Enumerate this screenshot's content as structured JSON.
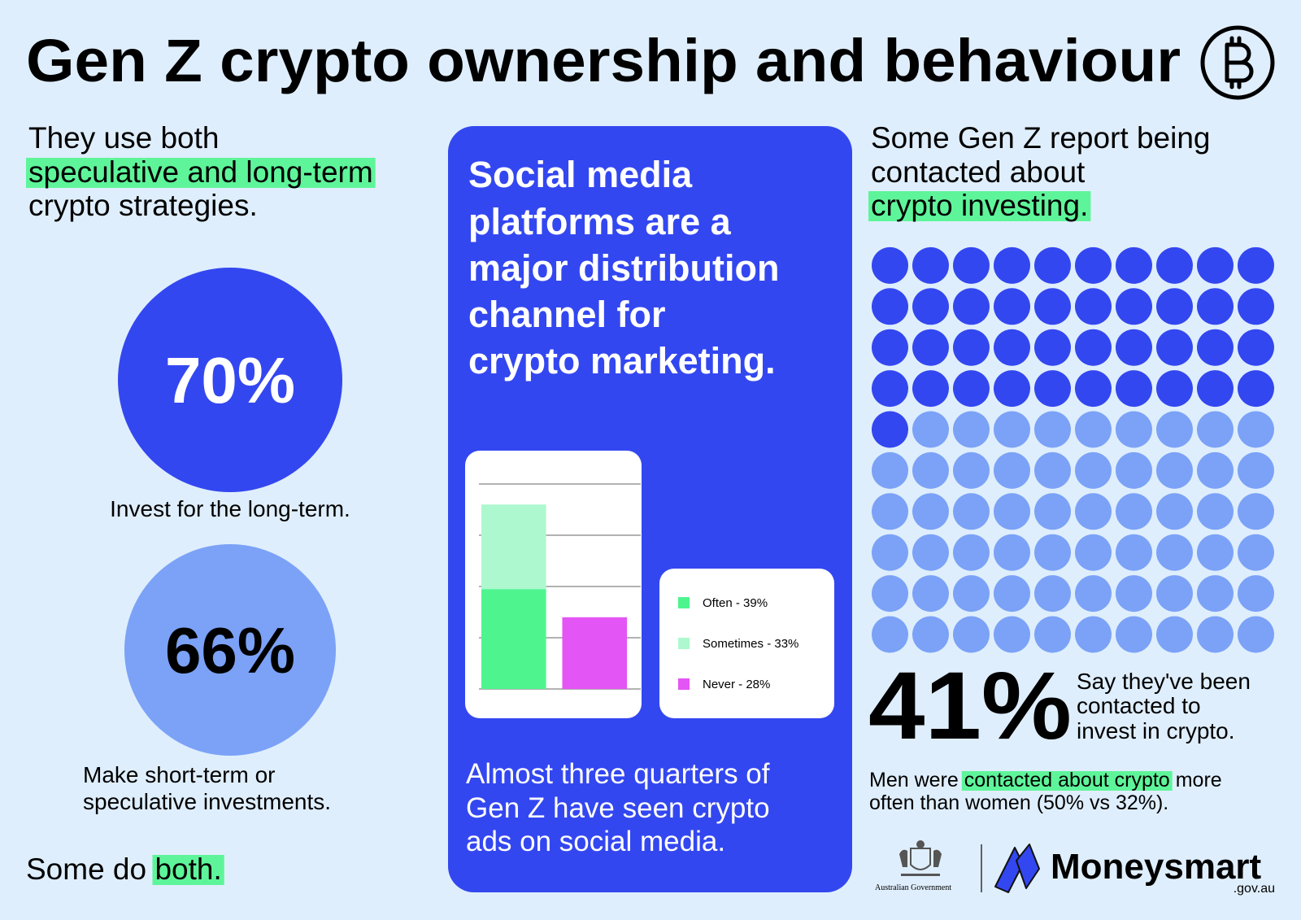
{
  "title": "Gen Z crypto ownership and behaviour",
  "left": {
    "heading": [
      "They use both",
      "speculative and long-term",
      "crypto strategies."
    ],
    "stats": [
      {
        "value": "70%",
        "caption": [
          "Invest for the long-term."
        ]
      },
      {
        "value": "66%",
        "caption": [
          "Make short-term or",
          "speculative investments."
        ]
      }
    ],
    "footer": [
      "Some do",
      "both."
    ]
  },
  "middle": {
    "heading": [
      "Social media",
      "platforms are a",
      "major distribution",
      "channel for",
      "crypto marketing."
    ],
    "footer": [
      "Almost three quarters of",
      "Gen Z have seen crypto",
      "ads on social media."
    ]
  },
  "right": {
    "heading": [
      "Some Gen Z report being",
      "contacted about",
      "crypto investing."
    ],
    "note": [
      [
        "Men were",
        "contacted about crypto",
        "more"
      ],
      [
        "often than women (50% vs 32%)."
      ]
    ]
  },
  "chart_data": [
    {
      "type": "bar",
      "stacked": true,
      "categories": [
        null,
        null
      ],
      "series": [
        {
          "name": "Often - 39%",
          "color": "#4ef58f",
          "values": [
            39,
            null
          ]
        },
        {
          "name": "Sometimes - 33%",
          "color": "#aef8cf",
          "values": [
            33,
            null
          ]
        },
        {
          "name": "Never - 28%",
          "color": "#e455f5",
          "values": [
            null,
            28
          ]
        }
      ],
      "ylim": [
        0,
        80
      ],
      "yticks": [
        0,
        20,
        40,
        60,
        80
      ],
      "grid": true
    },
    {
      "type": "waffle",
      "values": [
        41
      ],
      "value_labels": [
        "41%"
      ],
      "total": 100,
      "colors": [
        "#3347f0",
        "#7ba2f7"
      ],
      "caption": [
        "Say they've been",
        "contacted to",
        "invest in crypto."
      ]
    }
  ],
  "logos": {
    "government": "Australian Government",
    "brand": "Moneysmart",
    "domain": ".gov.au"
  }
}
